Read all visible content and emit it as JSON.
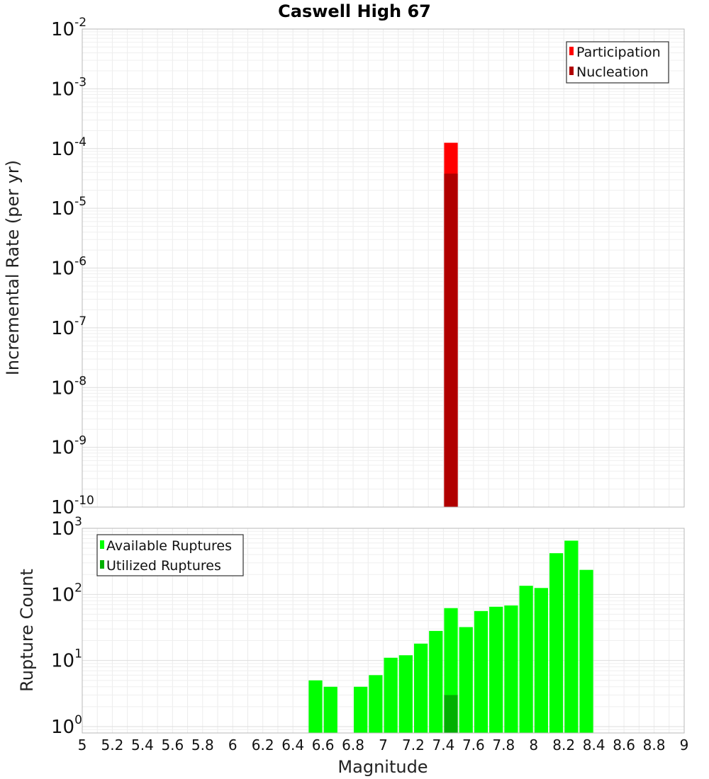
{
  "chart_data": [
    {
      "type": "bar",
      "title": "Caswell High 67",
      "xlabel": "",
      "ylabel": "Incremental Rate (per yr)",
      "xlim": [
        5,
        9
      ],
      "ylim": [
        1e-10,
        0.01
      ],
      "yscale": "log",
      "y_ticks": [
        {
          "base": "10",
          "exp": "-2",
          "value": 0.01
        },
        {
          "base": "10",
          "exp": "-3",
          "value": 0.001
        },
        {
          "base": "10",
          "exp": "-4",
          "value": 0.0001
        },
        {
          "base": "10",
          "exp": "-5",
          "value": 1e-05
        },
        {
          "base": "10",
          "exp": "-6",
          "value": 1e-06
        },
        {
          "base": "10",
          "exp": "-7",
          "value": 1e-07
        },
        {
          "base": "10",
          "exp": "-8",
          "value": 1e-08
        },
        {
          "base": "10",
          "exp": "-9",
          "value": 1e-09
        },
        {
          "base": "10",
          "exp": "-10",
          "value": 1e-10
        }
      ],
      "grid": true,
      "legend_position": "top-right",
      "bar_width": 0.1,
      "series": [
        {
          "name": "Participation",
          "color": "#ff0000",
          "points": [
            {
              "x": 7.45,
              "y": 0.000125
            }
          ]
        },
        {
          "name": "Nucleation",
          "color": "#b00000",
          "points": [
            {
              "x": 7.45,
              "y": 3.8e-05
            }
          ]
        }
      ]
    },
    {
      "type": "bar",
      "title": "",
      "xlabel": "Magnitude",
      "ylabel": "Rupture Count",
      "xlim": [
        5,
        9
      ],
      "ylim": [
        0.8,
        1000
      ],
      "yscale": "log",
      "x_ticks": [
        "5",
        "5.2",
        "5.4",
        "5.6",
        "5.8",
        "6",
        "6.2",
        "6.4",
        "6.6",
        "6.8",
        "7",
        "7.2",
        "7.4",
        "7.6",
        "7.8",
        "8",
        "8.2",
        "8.4",
        "8.6",
        "8.8",
        "9"
      ],
      "y_ticks": [
        {
          "base": "10",
          "exp": "3",
          "value": 1000
        },
        {
          "base": "10",
          "exp": "2",
          "value": 100
        },
        {
          "base": "10",
          "exp": "1",
          "value": 10
        },
        {
          "base": "10",
          "exp": "0",
          "value": 1
        }
      ],
      "grid": true,
      "legend_position": "top-left",
      "bar_width": 0.1,
      "series": [
        {
          "name": "Available Ruptures",
          "color": "#00ff00",
          "points": [
            {
              "x": 6.55,
              "y": 5
            },
            {
              "x": 6.65,
              "y": 4
            },
            {
              "x": 6.85,
              "y": 4
            },
            {
              "x": 6.95,
              "y": 6
            },
            {
              "x": 7.05,
              "y": 11
            },
            {
              "x": 7.15,
              "y": 12
            },
            {
              "x": 7.25,
              "y": 18
            },
            {
              "x": 7.35,
              "y": 28
            },
            {
              "x": 7.45,
              "y": 62
            },
            {
              "x": 7.55,
              "y": 32
            },
            {
              "x": 7.65,
              "y": 56
            },
            {
              "x": 7.75,
              "y": 65
            },
            {
              "x": 7.85,
              "y": 68
            },
            {
              "x": 7.95,
              "y": 135
            },
            {
              "x": 8.05,
              "y": 125
            },
            {
              "x": 8.15,
              "y": 420
            },
            {
              "x": 8.25,
              "y": 650
            },
            {
              "x": 8.35,
              "y": 235
            }
          ]
        },
        {
          "name": "Utilized Ruptures",
          "color": "#00b000",
          "points": [
            {
              "x": 7.45,
              "y": 3
            }
          ]
        }
      ]
    }
  ]
}
